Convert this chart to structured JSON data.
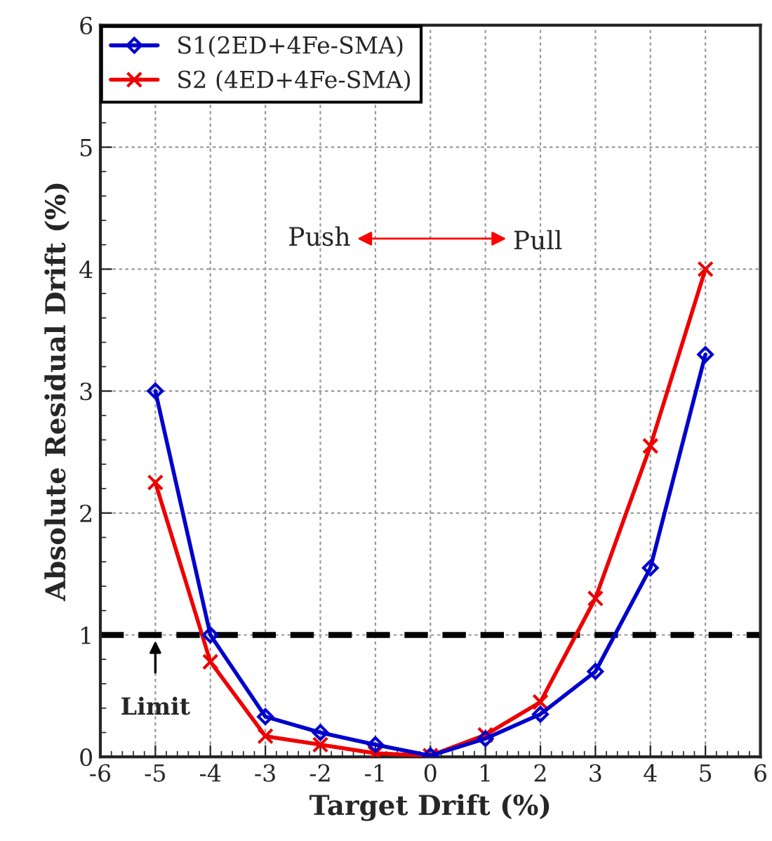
{
  "chart_data": {
    "type": "line",
    "xlabel": "Target Drift (%)",
    "ylabel": "Absolute Residual Drift (%)",
    "x": [
      -5,
      -4,
      -3,
      -2,
      -1,
      0,
      1,
      2,
      3,
      4,
      5
    ],
    "series": [
      {
        "name": "S1(2ED+4Fe-SMA)",
        "color": "#0000cc",
        "marker": "diamond",
        "values": [
          3.0,
          1.0,
          0.33,
          0.2,
          0.1,
          0.01,
          0.15,
          0.35,
          0.7,
          1.55,
          3.3
        ]
      },
      {
        "name": "S2 (4ED+4Fe-SMA)",
        "color": "#ee0000",
        "marker": "cross",
        "values": [
          2.25,
          0.78,
          0.17,
          0.1,
          0.03,
          0.01,
          0.18,
          0.45,
          1.3,
          2.55,
          4.0
        ]
      }
    ],
    "xlim": [
      -6,
      6
    ],
    "xticks": [
      -6,
      -5,
      -4,
      -3,
      -2,
      -1,
      0,
      1,
      2,
      3,
      4,
      5,
      6
    ],
    "ylim": [
      0,
      6
    ],
    "yticks": [
      0,
      1,
      2,
      3,
      4,
      5,
      6
    ],
    "ref_lines": [
      {
        "axis": "y",
        "value": 1,
        "label": "Limit",
        "color": "#000000",
        "line_style": "dashed"
      }
    ],
    "annotations": [
      "Push",
      "Pull"
    ],
    "grid": true,
    "legend": "top left",
    "line_style": "solid"
  }
}
